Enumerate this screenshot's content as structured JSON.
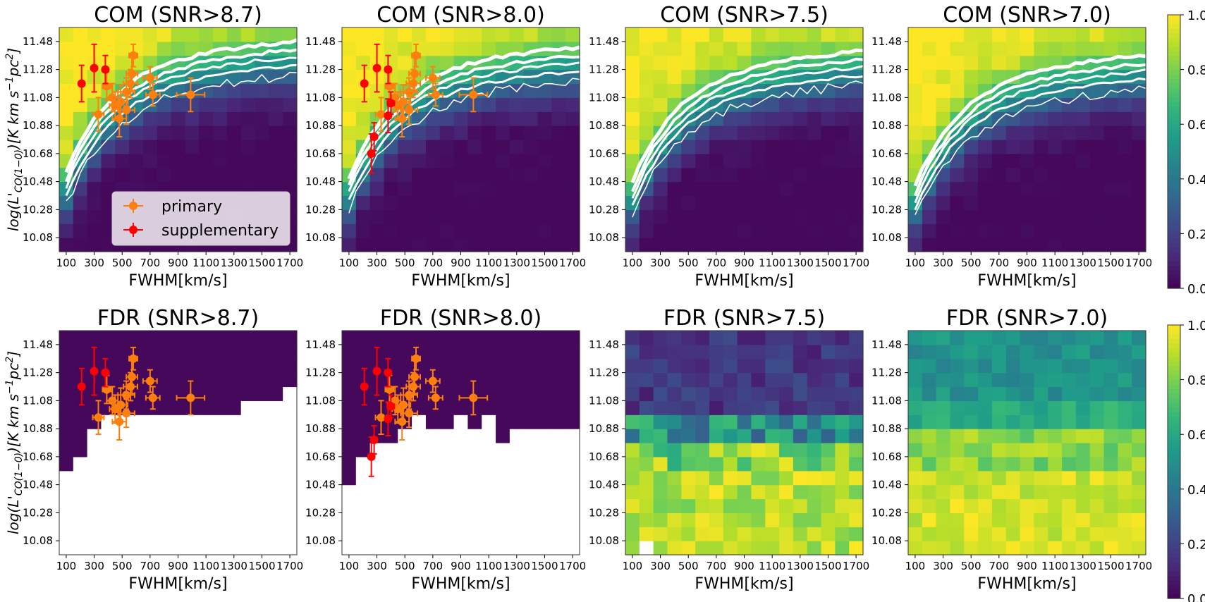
{
  "colors": {
    "viridis": [
      "#440154",
      "#482878",
      "#3e4989",
      "#31688e",
      "#26828e",
      "#1f9e89",
      "#35b779",
      "#6ece58",
      "#b5de2b",
      "#fde725"
    ],
    "primary": "#ff7f0e",
    "supplementary": "#ff0000",
    "contour": "#ffffff",
    "masked": "#ffffff"
  },
  "shared_axes": {
    "xlabel": "FWHM[km/s]",
    "ylabel_main": "log(L'",
    "ylabel_sub": "CO(1−0)",
    "ylabel_tail": ")[K km s",
    "ylabel_exp": "−1",
    "ylabel_pc": "pc",
    "ylabel_pc_exp": "2",
    "ylabel_close": "]",
    "xticks": [
      "100",
      "300",
      "500",
      "700",
      "900",
      "1100",
      "1300",
      "1500",
      "1700"
    ],
    "yticks": [
      "10.08",
      "10.28",
      "10.48",
      "10.68",
      "10.88",
      "11.08",
      "11.28",
      "11.48"
    ],
    "xlim": [
      50,
      1750
    ],
    "ylim": [
      9.98,
      11.58
    ]
  },
  "legend": {
    "items": [
      {
        "label": "primary",
        "series": "primary"
      },
      {
        "label": "supplementary",
        "series": "supplementary"
      }
    ]
  },
  "colorbars": [
    {
      "name": "colorbar-com",
      "ticks": [
        "0.0",
        "0.2",
        "0.4",
        "0.6",
        "0.8",
        "1.0"
      ]
    },
    {
      "name": "colorbar-fdr",
      "ticks": [
        "0.0",
        "0.2",
        "0.4",
        "0.6",
        "0.8",
        "1.0"
      ]
    }
  ],
  "chart_data": [
    {
      "type": "heatmap",
      "title": "COM (SNR>8.7)",
      "metric": "completeness",
      "snr": 8.7,
      "show_points": true,
      "show_supp_low": false,
      "show_legend": true,
      "show_ylabel": true
    },
    {
      "type": "heatmap",
      "title": "COM (SNR>8.0)",
      "metric": "completeness",
      "snr": 8.0,
      "show_points": true,
      "show_supp_low": true,
      "show_legend": false,
      "show_ylabel": false
    },
    {
      "type": "heatmap",
      "title": "COM (SNR>7.5)",
      "metric": "completeness",
      "snr": 7.5,
      "show_points": false,
      "show_supp_low": false,
      "show_legend": false,
      "show_ylabel": false
    },
    {
      "type": "heatmap",
      "title": "COM (SNR>7.0)",
      "metric": "completeness",
      "snr": 7.0,
      "show_points": false,
      "show_supp_low": false,
      "show_legend": false,
      "show_ylabel": false
    },
    {
      "type": "heatmap",
      "title": "FDR (SNR>8.7)",
      "metric": "fdr",
      "snr": 8.7,
      "show_points": true,
      "show_supp_low": false,
      "show_legend": false,
      "show_ylabel": true
    },
    {
      "type": "heatmap",
      "title": "FDR (SNR>8.0)",
      "metric": "fdr",
      "snr": 8.0,
      "show_points": true,
      "show_supp_low": true,
      "show_legend": false,
      "show_ylabel": false
    },
    {
      "type": "heatmap",
      "title": "FDR (SNR>7.5)",
      "metric": "fdr",
      "snr": 7.5,
      "show_points": false,
      "show_supp_low": false,
      "show_legend": false,
      "show_ylabel": false
    },
    {
      "type": "heatmap",
      "title": "FDR (SNR>7.0)",
      "metric": "fdr",
      "snr": 7.0,
      "show_points": false,
      "show_supp_low": false,
      "show_legend": false,
      "show_ylabel": false
    }
  ],
  "points": {
    "primary": [
      {
        "x": 580,
        "y": 11.38,
        "xerr": 30,
        "yerr": 0.08
      },
      {
        "x": 700,
        "y": 11.22,
        "xerr": 50,
        "yerr": 0.08
      },
      {
        "x": 570,
        "y": 11.25,
        "xerr": 40,
        "yerr": 0.12
      },
      {
        "x": 560,
        "y": 11.18,
        "xerr": 50,
        "yerr": 0.1
      },
      {
        "x": 390,
        "y": 11.16,
        "xerr": 30,
        "yerr": 0.1
      },
      {
        "x": 530,
        "y": 11.12,
        "xerr": 60,
        "yerr": 0.1
      },
      {
        "x": 720,
        "y": 11.1,
        "xerr": 50,
        "yerr": 0.08
      },
      {
        "x": 990,
        "y": 11.1,
        "xerr": 100,
        "yerr": 0.12
      },
      {
        "x": 430,
        "y": 11.08,
        "xerr": 40,
        "yerr": 0.1
      },
      {
        "x": 490,
        "y": 11.05,
        "xerr": 50,
        "yerr": 0.12
      },
      {
        "x": 450,
        "y": 11.02,
        "xerr": 40,
        "yerr": 0.1
      },
      {
        "x": 530,
        "y": 10.99,
        "xerr": 60,
        "yerr": 0.1
      },
      {
        "x": 330,
        "y": 10.96,
        "xerr": 40,
        "yerr": 0.12
      },
      {
        "x": 480,
        "y": 10.93,
        "xerr": 50,
        "yerr": 0.13
      }
    ],
    "supplementary": [
      {
        "x": 210,
        "y": 11.18,
        "xerr": 0,
        "yerr": 0.13
      },
      {
        "x": 300,
        "y": 11.29,
        "xerr": 0,
        "yerr": 0.17
      },
      {
        "x": 380,
        "y": 11.28,
        "xerr": 20,
        "yerr": 0.1
      }
    ],
    "supplementary_low": [
      {
        "x": 400,
        "y": 11.04,
        "xerr": 25,
        "yerr": 0.08
      },
      {
        "x": 380,
        "y": 10.95,
        "xerr": 20,
        "yerr": 0.12
      },
      {
        "x": 280,
        "y": 10.8,
        "xerr": 20,
        "yerr": 0.1
      },
      {
        "x": 260,
        "y": 10.68,
        "xerr": 20,
        "yerr": 0.14
      }
    ]
  }
}
